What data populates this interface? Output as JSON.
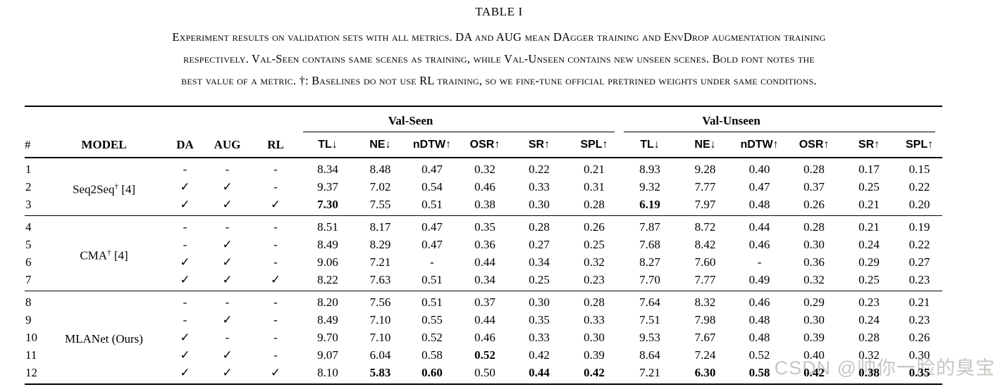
{
  "title": "TABLE I",
  "caption_lines": [
    "Experiment results on validation sets with all metrics. DA and AUG mean DAgger training and EnvDrop augmentation training",
    "respectively. Val-Seen contains same scenes as training, while Val-Unseen contains new unseen scenes. Bold font notes the",
    "best value of a metric. †: Baselines do not use RL training, so we fine-tune official pretrined weights under same conditions."
  ],
  "table": {
    "group_headers": [
      "Val-Seen",
      "Val-Unseen"
    ],
    "columns": {
      "num": "#",
      "model": "MODEL",
      "da": "DA",
      "aug": "AUG",
      "rl": "RL",
      "metrics": [
        "TL↓",
        "NE↓",
        "nDTW↑",
        "OSR↑",
        "SR↑",
        "SPL↑"
      ]
    },
    "check_glyph": "✓",
    "dash_glyph": "-",
    "groups": [
      {
        "label_main": "Seq2Seq",
        "label_sup": "†",
        "label_ref": "[4]",
        "rows": [
          {
            "num": "1",
            "da": "-",
            "aug": "-",
            "rl": "-",
            "seen": [
              "8.34",
              "8.48",
              "0.47",
              "0.32",
              "0.22",
              "0.21"
            ],
            "unseen": [
              "8.93",
              "9.28",
              "0.40",
              "0.28",
              "0.17",
              "0.15"
            ],
            "bold_seen": [],
            "bold_unseen": []
          },
          {
            "num": "2",
            "da": "✓",
            "aug": "✓",
            "rl": "-",
            "seen": [
              "9.37",
              "7.02",
              "0.54",
              "0.46",
              "0.33",
              "0.31"
            ],
            "unseen": [
              "9.32",
              "7.77",
              "0.47",
              "0.37",
              "0.25",
              "0.22"
            ],
            "bold_seen": [],
            "bold_unseen": []
          },
          {
            "num": "3",
            "da": "✓",
            "aug": "✓",
            "rl": "✓",
            "seen": [
              "7.30",
              "7.55",
              "0.51",
              "0.38",
              "0.30",
              "0.28"
            ],
            "unseen": [
              "6.19",
              "7.97",
              "0.48",
              "0.26",
              "0.21",
              "0.20"
            ],
            "bold_seen": [
              0
            ],
            "bold_unseen": [
              0
            ]
          }
        ]
      },
      {
        "label_main": "CMA",
        "label_sup": "†",
        "label_ref": "[4]",
        "rows": [
          {
            "num": "4",
            "da": "-",
            "aug": "-",
            "rl": "-",
            "seen": [
              "8.51",
              "8.17",
              "0.47",
              "0.35",
              "0.28",
              "0.26"
            ],
            "unseen": [
              "7.87",
              "8.72",
              "0.44",
              "0.28",
              "0.21",
              "0.19"
            ],
            "bold_seen": [],
            "bold_unseen": []
          },
          {
            "num": "5",
            "da": "-",
            "aug": "✓",
            "rl": "-",
            "seen": [
              "8.49",
              "8.29",
              "0.47",
              "0.36",
              "0.27",
              "0.25"
            ],
            "unseen": [
              "7.68",
              "8.42",
              "0.46",
              "0.30",
              "0.24",
              "0.22"
            ],
            "bold_seen": [],
            "bold_unseen": []
          },
          {
            "num": "6",
            "da": "✓",
            "aug": "✓",
            "rl": "-",
            "seen": [
              "9.06",
              "7.21",
              "-",
              "0.44",
              "0.34",
              "0.32"
            ],
            "unseen": [
              "8.27",
              "7.60",
              "-",
              "0.36",
              "0.29",
              "0.27"
            ],
            "bold_seen": [],
            "bold_unseen": []
          },
          {
            "num": "7",
            "da": "✓",
            "aug": "✓",
            "rl": "✓",
            "seen": [
              "8.22",
              "7.63",
              "0.51",
              "0.34",
              "0.25",
              "0.23"
            ],
            "unseen": [
              "7.70",
              "7.77",
              "0.49",
              "0.32",
              "0.25",
              "0.23"
            ],
            "bold_seen": [],
            "bold_unseen": []
          }
        ]
      },
      {
        "label_main": "MLANet (Ours)",
        "label_sup": "",
        "label_ref": "",
        "rows": [
          {
            "num": "8",
            "da": "-",
            "aug": "-",
            "rl": "-",
            "seen": [
              "8.20",
              "7.56",
              "0.51",
              "0.37",
              "0.30",
              "0.28"
            ],
            "unseen": [
              "7.64",
              "8.32",
              "0.46",
              "0.29",
              "0.23",
              "0.21"
            ],
            "bold_seen": [],
            "bold_unseen": []
          },
          {
            "num": "9",
            "da": "-",
            "aug": "✓",
            "rl": "-",
            "seen": [
              "8.49",
              "7.10",
              "0.55",
              "0.44",
              "0.35",
              "0.33"
            ],
            "unseen": [
              "7.51",
              "7.98",
              "0.48",
              "0.30",
              "0.24",
              "0.23"
            ],
            "bold_seen": [],
            "bold_unseen": []
          },
          {
            "num": "10",
            "da": "✓",
            "aug": "-",
            "rl": "-",
            "seen": [
              "9.70",
              "7.10",
              "0.52",
              "0.46",
              "0.33",
              "0.30"
            ],
            "unseen": [
              "9.53",
              "7.67",
              "0.48",
              "0.39",
              "0.28",
              "0.26"
            ],
            "bold_seen": [],
            "bold_unseen": []
          },
          {
            "num": "11",
            "da": "✓",
            "aug": "✓",
            "rl": "-",
            "seen": [
              "9.07",
              "6.04",
              "0.58",
              "0.52",
              "0.42",
              "0.39"
            ],
            "unseen": [
              "8.64",
              "7.24",
              "0.52",
              "0.40",
              "0.32",
              "0.30"
            ],
            "bold_seen": [
              3
            ],
            "bold_unseen": []
          },
          {
            "num": "12",
            "da": "✓",
            "aug": "✓",
            "rl": "✓",
            "seen": [
              "8.10",
              "5.83",
              "0.60",
              "0.50",
              "0.44",
              "0.42"
            ],
            "unseen": [
              "7.21",
              "6.30",
              "0.58",
              "0.42",
              "0.38",
              "0.35"
            ],
            "bold_seen": [
              1,
              2,
              4,
              5
            ],
            "bold_unseen": [
              1,
              2,
              3,
              4,
              5
            ]
          }
        ]
      }
    ]
  },
  "watermark": {
    "text": "CSDN @帅你一脸的臭宝",
    "color": "#c9c5c2"
  }
}
